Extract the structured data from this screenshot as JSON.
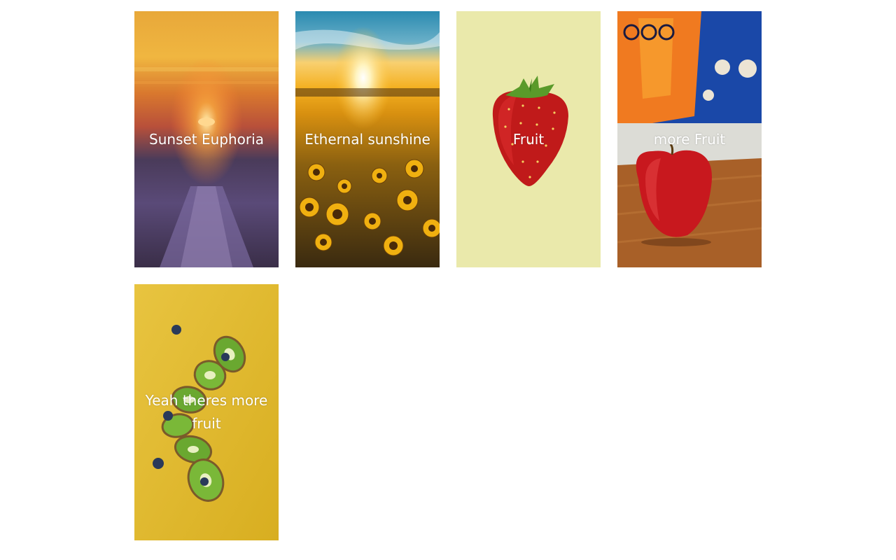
{
  "gallery": {
    "items": [
      {
        "title": "Sunset Euphoria",
        "image": "sunset-pier-photo"
      },
      {
        "title": "Ethernal sunshine",
        "image": "sunflower-field-photo"
      },
      {
        "title": "Fruit",
        "image": "strawberry-photo"
      },
      {
        "title": "more Fruit",
        "image": "apple-photo"
      },
      {
        "title": "Yeah theres more fruit",
        "image": "kiwi-slices-photo"
      }
    ]
  }
}
